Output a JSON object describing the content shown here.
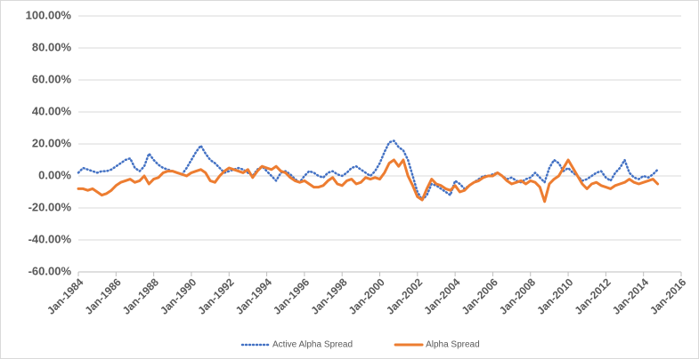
{
  "chart_data": {
    "type": "line",
    "x": [
      "Jan-1984",
      "Apr-1984",
      "Jul-1984",
      "Oct-1984",
      "Jan-1985",
      "Apr-1985",
      "Jul-1985",
      "Oct-1985",
      "Jan-1986",
      "Apr-1986",
      "Jul-1986",
      "Oct-1986",
      "Jan-1987",
      "Apr-1987",
      "Jul-1987",
      "Oct-1987",
      "Jan-1988",
      "Apr-1988",
      "Jul-1988",
      "Oct-1988",
      "Jan-1989",
      "Apr-1989",
      "Jul-1989",
      "Oct-1989",
      "Jan-1990",
      "Apr-1990",
      "Jul-1990",
      "Oct-1990",
      "Jan-1991",
      "Apr-1991",
      "Jul-1991",
      "Oct-1991",
      "Jan-1992",
      "Apr-1992",
      "Jul-1992",
      "Oct-1992",
      "Jan-1993",
      "Apr-1993",
      "Jul-1993",
      "Oct-1993",
      "Jan-1994",
      "Apr-1994",
      "Jul-1994",
      "Oct-1994",
      "Jan-1995",
      "Apr-1995",
      "Jul-1995",
      "Oct-1995",
      "Jan-1996",
      "Apr-1996",
      "Jul-1996",
      "Oct-1996",
      "Jan-1997",
      "Apr-1997",
      "Jul-1997",
      "Oct-1997",
      "Jan-1998",
      "Apr-1998",
      "Jul-1998",
      "Oct-1998",
      "Jan-1999",
      "Apr-1999",
      "Jul-1999",
      "Oct-1999",
      "Jan-2000",
      "Apr-2000",
      "Jul-2000",
      "Oct-2000",
      "Jan-2001",
      "Apr-2001",
      "Jul-2001",
      "Oct-2001",
      "Jan-2002",
      "Apr-2002",
      "Jul-2002",
      "Oct-2002",
      "Jan-2003",
      "Apr-2003",
      "Jul-2003",
      "Oct-2003",
      "Jan-2004",
      "Apr-2004",
      "Jul-2004",
      "Oct-2004",
      "Jan-2005",
      "Apr-2005",
      "Jul-2005",
      "Oct-2005",
      "Jan-2006",
      "Apr-2006",
      "Jul-2006",
      "Oct-2006",
      "Jan-2007",
      "Apr-2007",
      "Jul-2007",
      "Oct-2007",
      "Jan-2008",
      "Apr-2008",
      "Jul-2008",
      "Oct-2008",
      "Jan-2009",
      "Apr-2009",
      "Jul-2009",
      "Oct-2009",
      "Jan-2010",
      "Apr-2010",
      "Jul-2010",
      "Oct-2010",
      "Jan-2011",
      "Apr-2011",
      "Jul-2011",
      "Oct-2011",
      "Jan-2012",
      "Apr-2012",
      "Jul-2012",
      "Oct-2012",
      "Jan-2013",
      "Apr-2013",
      "Jul-2013",
      "Oct-2013",
      "Jan-2014",
      "Apr-2014",
      "Jul-2014",
      "Oct-2014"
    ],
    "series": [
      {
        "name": "Active Alpha Spread",
        "color": "#4472c4",
        "dash": "dotted",
        "values": [
          2,
          5,
          4,
          3,
          2,
          3,
          3,
          4,
          6,
          8,
          10,
          11,
          5,
          3,
          6,
          14,
          10,
          7,
          5,
          4,
          3,
          2,
          1,
          5,
          10,
          15,
          19,
          14,
          10,
          8,
          5,
          2,
          3,
          4,
          5,
          4,
          2,
          0,
          4,
          6,
          3,
          0,
          -3,
          2,
          3,
          1,
          -2,
          -4,
          0,
          3,
          2,
          0,
          -1,
          2,
          3,
          1,
          0,
          2,
          5,
          6,
          4,
          2,
          0,
          3,
          8,
          15,
          21,
          22,
          18,
          16,
          10,
          0,
          -10,
          -15,
          -12,
          -5,
          -6,
          -8,
          -10,
          -12,
          -3,
          -5,
          -8,
          -6,
          -4,
          -2,
          0,
          0,
          1,
          2,
          0,
          -2,
          -1,
          -3,
          -4,
          -2,
          -1,
          2,
          -1,
          -4,
          5,
          10,
          8,
          3,
          5,
          2,
          0,
          -3,
          -2,
          0,
          2,
          3,
          -1,
          -3,
          2,
          5,
          10,
          2,
          -1,
          -2,
          0,
          -1,
          1,
          4
        ]
      },
      {
        "name": "Alpha Spread",
        "color": "#ed7d31",
        "dash": "solid",
        "values": [
          -8,
          -8,
          -9,
          -8,
          -10,
          -12,
          -11,
          -9,
          -6,
          -4,
          -3,
          -2,
          -4,
          -3,
          0,
          -5,
          -2,
          -1,
          2,
          3,
          3,
          2,
          1,
          0,
          2,
          3,
          4,
          2,
          -3,
          -4,
          0,
          3,
          5,
          4,
          3,
          2,
          4,
          -1,
          3,
          6,
          5,
          4,
          6,
          3,
          2,
          -1,
          -3,
          -4,
          -3,
          -5,
          -7,
          -7,
          -6,
          -3,
          -1,
          -5,
          -6,
          -3,
          -2,
          -5,
          -4,
          -1,
          -2,
          -1,
          -2,
          2,
          8,
          10,
          6,
          10,
          0,
          -6,
          -13,
          -15,
          -8,
          -2,
          -5,
          -6,
          -8,
          -9,
          -6,
          -10,
          -9,
          -6,
          -4,
          -3,
          -1,
          0,
          0,
          2,
          0,
          -3,
          -5,
          -4,
          -3,
          -5,
          -3,
          -4,
          -7,
          -16,
          -5,
          -2,
          0,
          5,
          10,
          5,
          0,
          -5,
          -8,
          -5,
          -4,
          -6,
          -7,
          -8,
          -6,
          -5,
          -4,
          -2,
          -4,
          -5,
          -4,
          -3,
          -2,
          -5
        ]
      }
    ],
    "xlim": [
      "Jan-1984",
      "Jan-2016"
    ],
    "xticks": [
      "Jan-1984",
      "Jan-1986",
      "Jan-1988",
      "Jan-1990",
      "Jan-1992",
      "Jan-1994",
      "Jan-1996",
      "Jan-1998",
      "Jan-2000",
      "Jan-2002",
      "Jan-2004",
      "Jan-2006",
      "Jan-2008",
      "Jan-2010",
      "Jan-2012",
      "Jan-2014",
      "Jan-2016"
    ],
    "ylim": [
      -60,
      100
    ],
    "yticks": [
      {
        "value": -60,
        "label": "-60.00%"
      },
      {
        "value": -40,
        "label": "-40.00%"
      },
      {
        "value": -20,
        "label": "-20.00%"
      },
      {
        "value": 0,
        "label": "0.00%"
      },
      {
        "value": 20,
        "label": "20.00%"
      },
      {
        "value": 40,
        "label": "40.00%"
      },
      {
        "value": 60,
        "label": "60.00%"
      },
      {
        "value": 80,
        "label": "80.00%"
      },
      {
        "value": 100,
        "label": "100.00%"
      }
    ],
    "grid": true,
    "legend": "bottom"
  }
}
